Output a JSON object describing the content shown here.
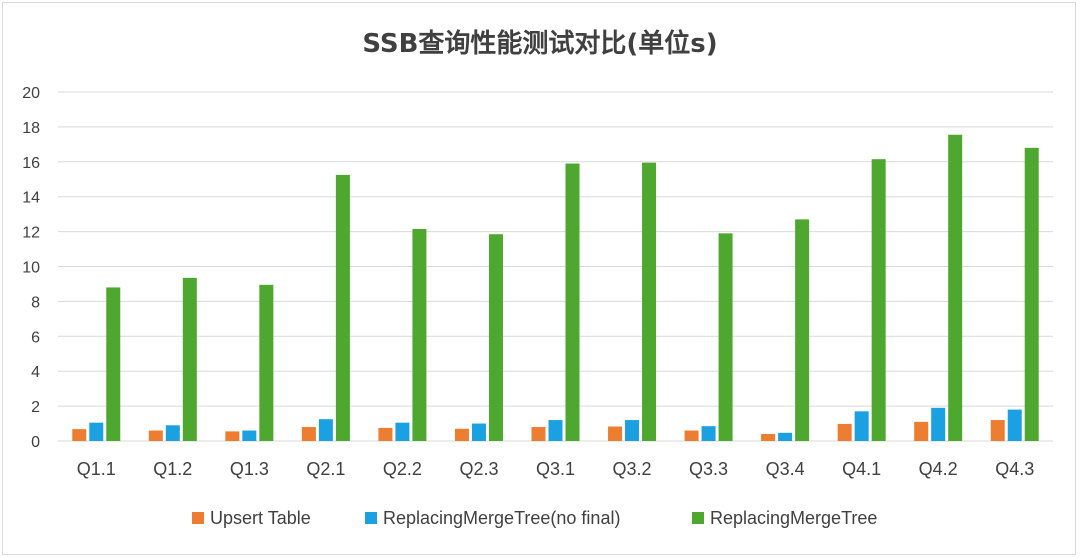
{
  "chart_data": {
    "type": "bar",
    "title": "SSB查询性能测试对比(单位s)",
    "xlabel": "",
    "ylabel": "",
    "ylim": [
      0,
      20
    ],
    "yticks": [
      0,
      2,
      4,
      6,
      8,
      10,
      12,
      14,
      16,
      18,
      20
    ],
    "grid": true,
    "legend_position": "bottom",
    "categories": [
      "Q1.1",
      "Q1.2",
      "Q1.3",
      "Q2.1",
      "Q2.2",
      "Q2.3",
      "Q3.1",
      "Q3.2",
      "Q3.3",
      "Q3.4",
      "Q4.1",
      "Q4.2",
      "Q4.3"
    ],
    "series": [
      {
        "name": "Upsert Table",
        "color": "#ed7d31",
        "values": [
          0.68,
          0.6,
          0.55,
          0.8,
          0.75,
          0.7,
          0.8,
          0.83,
          0.6,
          0.4,
          0.98,
          1.1,
          1.2
        ]
      },
      {
        "name": "ReplacingMergeTree(no final)",
        "color": "#1ba1e2",
        "values": [
          1.05,
          0.9,
          0.6,
          1.25,
          1.05,
          1.0,
          1.2,
          1.2,
          0.85,
          0.47,
          1.7,
          1.9,
          1.8
        ]
      },
      {
        "name": "ReplacingMergeTree",
        "color": "#4ea72e",
        "values": [
          8.8,
          9.35,
          8.95,
          15.25,
          12.15,
          11.85,
          15.9,
          15.95,
          11.9,
          12.7,
          16.15,
          17.55,
          16.8
        ]
      }
    ]
  }
}
